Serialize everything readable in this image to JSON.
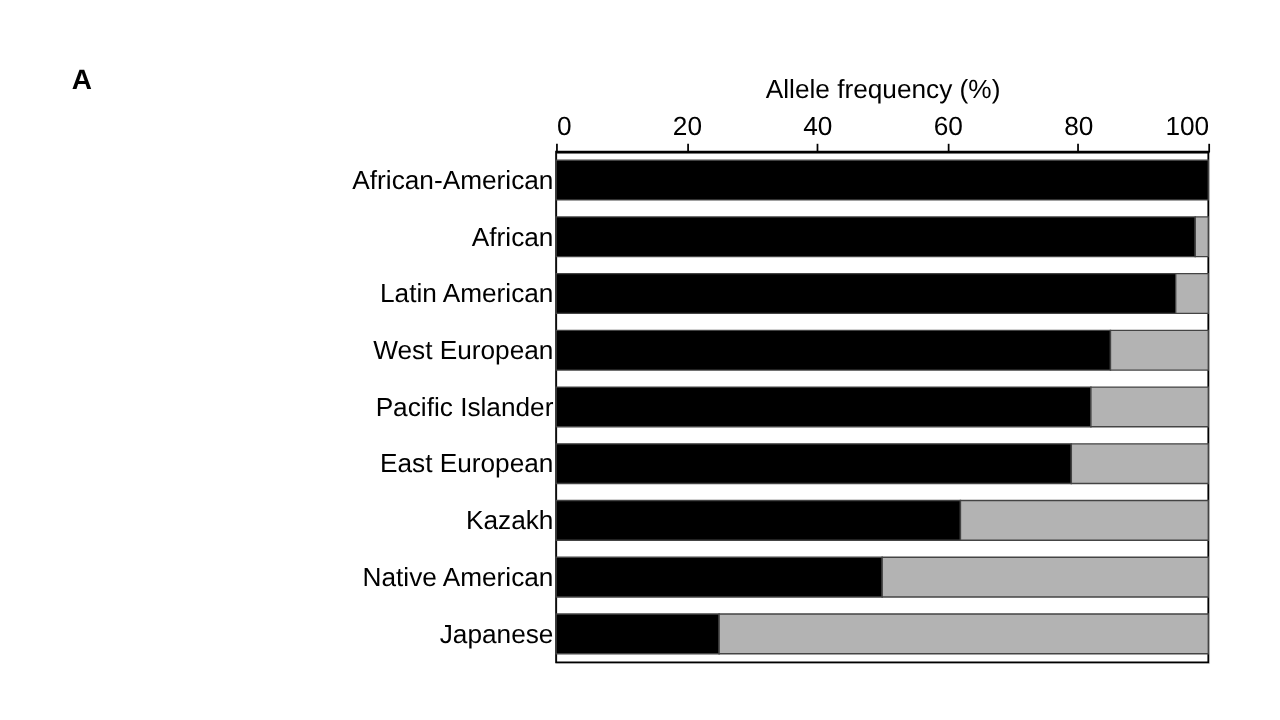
{
  "chart_data": {
    "type": "bar",
    "orientation": "horizontal",
    "stacked": true,
    "xlabel": "Allele frequency (%)",
    "annotations": [
      "A"
    ],
    "categories": [
      "African-American",
      "African",
      "Latin American",
      "West European",
      "Pacific Islander",
      "East European",
      "Kazakh",
      "Native American",
      "Japanese"
    ],
    "series": [
      {
        "color": "#000000",
        "values": [
          100,
          98,
          95,
          85,
          82,
          79,
          62,
          50,
          25
        ]
      },
      {
        "color": "#b3b3b3",
        "values": [
          null,
          2,
          5,
          15,
          18,
          21,
          38,
          50,
          75
        ]
      }
    ],
    "xlim": [
      0,
      100
    ],
    "xticks": [
      0,
      20,
      40,
      60,
      80,
      100
    ],
    "grid": false,
    "legend": false
  }
}
